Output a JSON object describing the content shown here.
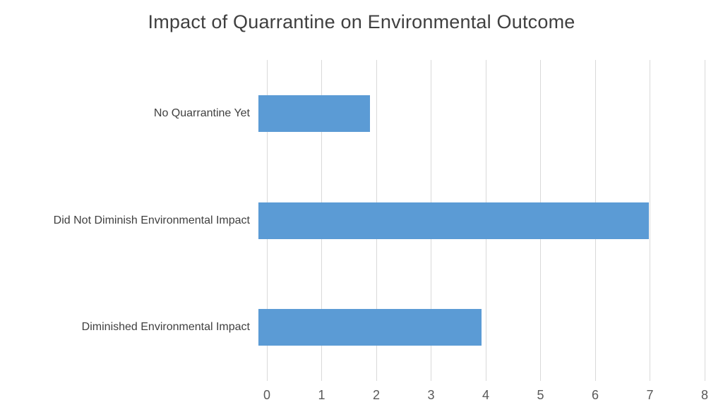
{
  "chart_data": {
    "type": "bar",
    "orientation": "horizontal",
    "title": "Impact of Quarrantine on Environmental Outcome",
    "categories": [
      "No Quarrantine Yet",
      "Did Not Diminish Environmental Impact",
      "Diminished Environmental Impact"
    ],
    "values": [
      2,
      7,
      4
    ],
    "xlabel": "",
    "ylabel": "",
    "xlim": [
      0,
      8
    ],
    "xticks": [
      0,
      1,
      2,
      3,
      4,
      5,
      6,
      7,
      8
    ],
    "grid": true,
    "legend": "none",
    "bar_color": "#5b9bd5",
    "gridline_color": "#d9d9d9",
    "title_color": "#404040",
    "label_color": "#404040",
    "tick_color": "#595959"
  }
}
